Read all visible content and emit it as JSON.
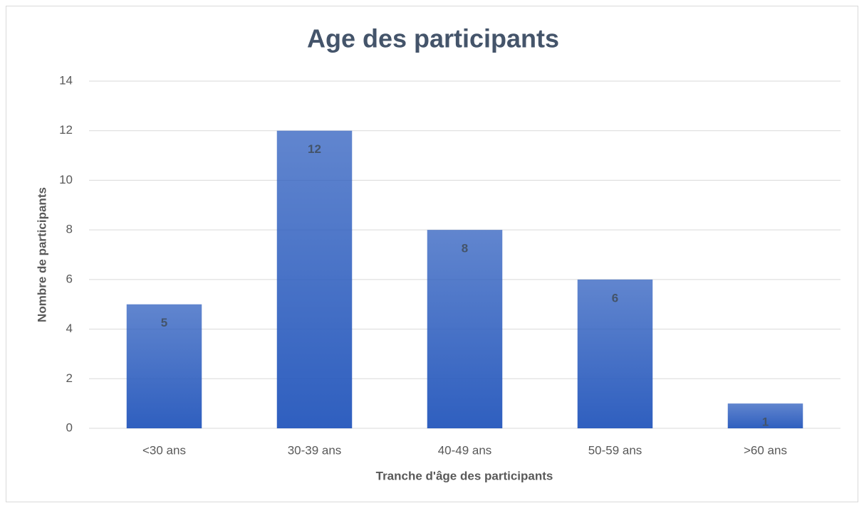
{
  "chart_data": {
    "type": "bar",
    "title": "Age des participants",
    "x_label": "Tranche d'âge des participants",
    "y_label": "Nombre de participants",
    "categories": [
      "<30 ans",
      "30-39 ans",
      "40-49 ans",
      "50-59 ans",
      ">60 ans"
    ],
    "values": [
      5,
      12,
      8,
      6,
      1
    ],
    "color": "#2f5fbf",
    "ylim": [
      0,
      14
    ],
    "yticks": [
      0,
      2,
      4,
      6,
      8,
      10,
      12,
      14
    ],
    "grid": true
  }
}
